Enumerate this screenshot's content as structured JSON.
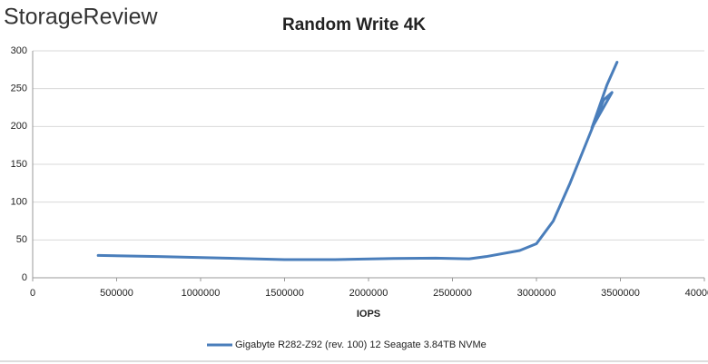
{
  "logo": "StorageReview",
  "chart_data": {
    "type": "line",
    "title": "Random Write 4K",
    "x_label": "IOPS",
    "series": [
      {
        "name": "Gigabyte R282-Z92 (rev. 100) 12 Seagate 3.84TB NVMe",
        "color": "#4a7ebb",
        "x": [
          390000,
          750000,
          1150000,
          1500000,
          1800000,
          2150000,
          2400000,
          2600000,
          2700000,
          2900000,
          3000000,
          3100000,
          3200000,
          3300000,
          3400000,
          3450000,
          3330000,
          3420000,
          3480000
        ],
        "values": [
          29.5,
          28,
          26,
          24,
          24,
          25.5,
          26,
          25,
          28,
          36,
          45,
          75,
          125,
          180,
          235,
          245,
          198,
          255,
          285
        ]
      }
    ],
    "xlim": [
      0,
      4000000
    ],
    "xticks": [
      0,
      500000,
      1000000,
      1500000,
      2000000,
      2500000,
      3000000,
      3500000,
      4000000
    ],
    "ylim": [
      0,
      300
    ],
    "yticks": [
      0,
      50,
      100,
      150,
      200,
      250,
      300
    ],
    "grid": true,
    "legend": "bottom"
  }
}
